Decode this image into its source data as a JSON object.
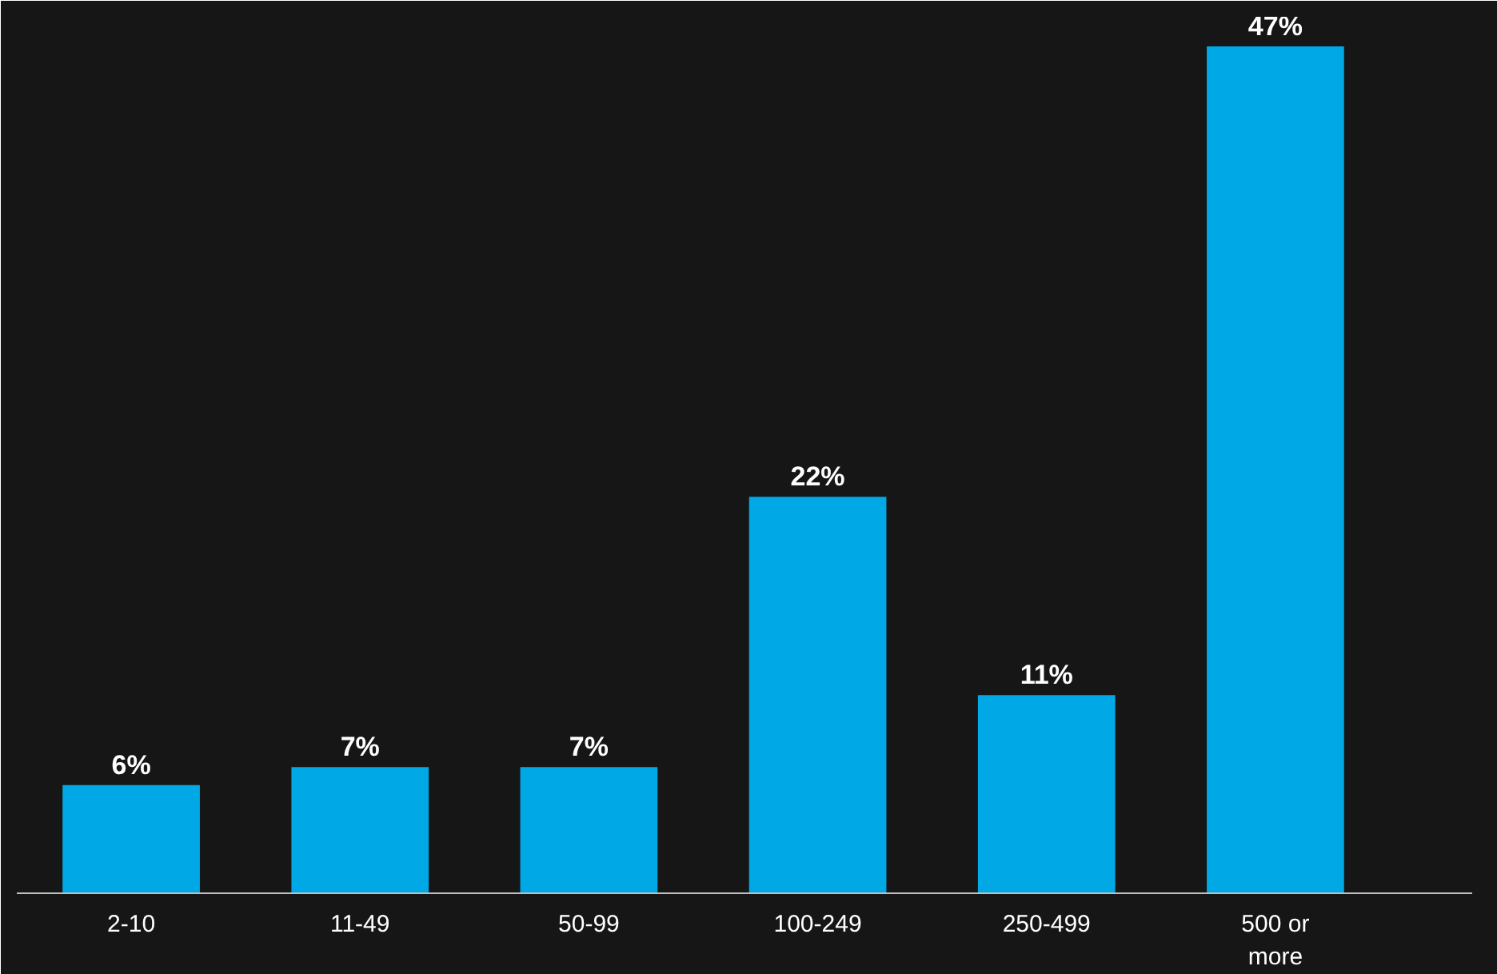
{
  "chart_data": {
    "type": "bar",
    "categories": [
      "2-10",
      "11-49",
      "50-99",
      "100-249",
      "250-499",
      "500 or more"
    ],
    "values": [
      6,
      7,
      7,
      22,
      11,
      47
    ],
    "value_labels": [
      "6%",
      "7%",
      "7%",
      "22%",
      "11%",
      "47%"
    ],
    "color": "#00a8e6",
    "grid": false
  }
}
